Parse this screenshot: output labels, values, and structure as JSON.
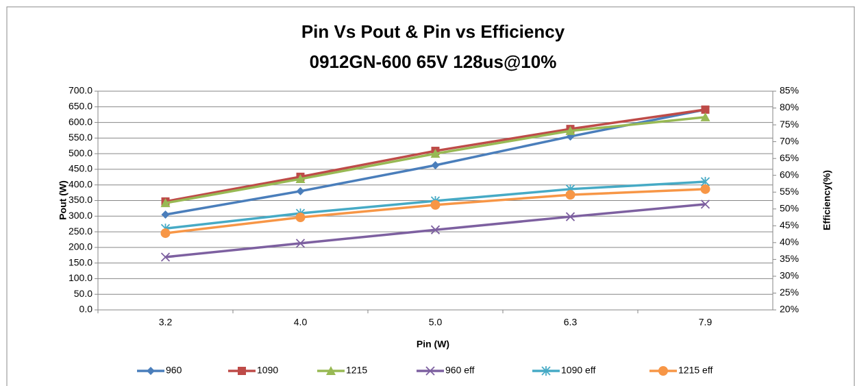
{
  "chart_data": {
    "type": "line",
    "title": "Pin Vs Pout   &  Pin vs Efficiency",
    "subtitle": "0912GN-600  65V  128us@10%",
    "x_label": "Pin (W)",
    "y_label": "Pout (W)",
    "y2_label": "Efficiency(%)",
    "categories": [
      "3.2",
      "4.0",
      "5.0",
      "6.3",
      "7.9"
    ],
    "ylim": [
      0,
      700
    ],
    "yticks": [
      {
        "value": 0,
        "label": "0.0"
      },
      {
        "value": 50,
        "label": "50.0"
      },
      {
        "value": 100,
        "label": "100.0"
      },
      {
        "value": 150,
        "label": "150.0"
      },
      {
        "value": 200,
        "label": "200.0"
      },
      {
        "value": 250,
        "label": "250.0"
      },
      {
        "value": 300,
        "label": "300.0"
      },
      {
        "value": 350,
        "label": "350.0"
      },
      {
        "value": 400,
        "label": "400.0"
      },
      {
        "value": 450,
        "label": "450.0"
      },
      {
        "value": 500,
        "label": "500.0"
      },
      {
        "value": 550,
        "label": "550.0"
      },
      {
        "value": 600,
        "label": "600.0"
      },
      {
        "value": 650,
        "label": "650.0"
      },
      {
        "value": 700,
        "label": "700.0"
      }
    ],
    "y2lim": [
      20,
      85
    ],
    "y2ticks": [
      {
        "value": 20,
        "label": "20%"
      },
      {
        "value": 25,
        "label": "25%"
      },
      {
        "value": 30,
        "label": "30%"
      },
      {
        "value": 35,
        "label": "35%"
      },
      {
        "value": 40,
        "label": "40%"
      },
      {
        "value": 45,
        "label": "45%"
      },
      {
        "value": 50,
        "label": "50%"
      },
      {
        "value": 55,
        "label": "55%"
      },
      {
        "value": 60,
        "label": "60%"
      },
      {
        "value": 65,
        "label": "65%"
      },
      {
        "value": 70,
        "label": "70%"
      },
      {
        "value": 75,
        "label": "75%"
      },
      {
        "value": 80,
        "label": "80%"
      },
      {
        "value": 85,
        "label": "85%"
      }
    ],
    "grid": true,
    "legend": "bottom",
    "series": [
      {
        "name": "960",
        "color": "#4a7ebb",
        "marker": "diamond",
        "values": [
          305,
          380,
          463,
          555,
          641
        ]
      },
      {
        "name": "1090",
        "color": "#be4b48",
        "marker": "square",
        "values": [
          347,
          426,
          509,
          579,
          641
        ]
      },
      {
        "name": "1215",
        "color": "#98b954",
        "marker": "triangle",
        "values": [
          342,
          419,
          500,
          573,
          617
        ]
      },
      {
        "name": "960 eff",
        "color": "#7d60a0",
        "marker": "x",
        "axis": "y2",
        "values": [
          35.7,
          39.8,
          43.8,
          47.7,
          51.4
        ]
      },
      {
        "name": "1090 eff",
        "color": "#46aac5",
        "marker": "star",
        "axis": "y2",
        "values": [
          44.2,
          48.7,
          52.4,
          55.9,
          58.1
        ]
      },
      {
        "name": "1215 eff",
        "color": "#f79646",
        "marker": "circle",
        "axis": "y2",
        "values": [
          42.8,
          47.5,
          51.2,
          54.2,
          55.9
        ]
      }
    ]
  }
}
